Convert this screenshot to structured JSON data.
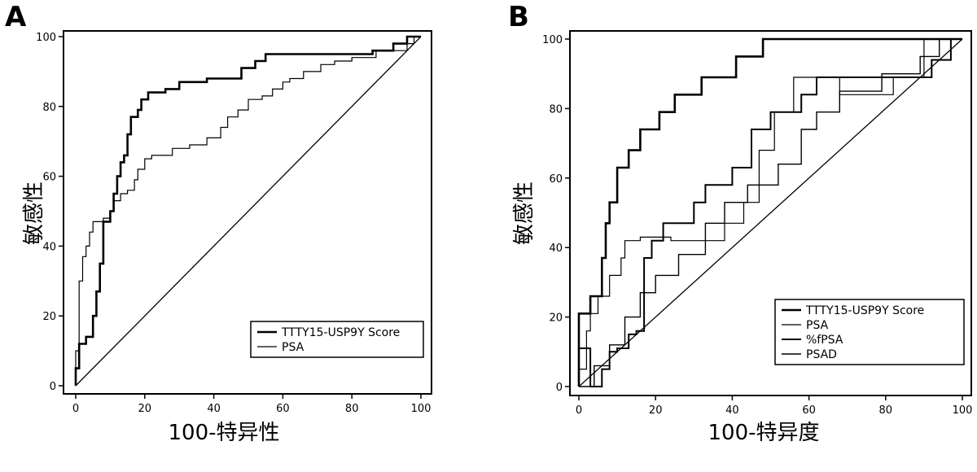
{
  "chart_data": [
    {
      "panel": "A",
      "type": "line",
      "xlabel": "100-特异性",
      "ylabel": "敏感性",
      "xlim": [
        0,
        100
      ],
      "ylim": [
        0,
        100
      ],
      "xticks": [
        0,
        20,
        40,
        60,
        80,
        100
      ],
      "yticks": [
        0,
        20,
        40,
        60,
        80,
        100
      ],
      "grid": false,
      "legend_position": "bottom-right",
      "reference_line": true,
      "series": [
        {
          "name": "TTTY15-USP9Y Score",
          "stroke_width": 2.6,
          "points": [
            [
              0,
              0
            ],
            [
              0,
              5
            ],
            [
              1,
              5
            ],
            [
              1,
              12
            ],
            [
              3,
              12
            ],
            [
              3,
              14
            ],
            [
              5,
              14
            ],
            [
              5,
              20
            ],
            [
              6,
              20
            ],
            [
              6,
              27
            ],
            [
              7,
              27
            ],
            [
              7,
              35
            ],
            [
              8,
              35
            ],
            [
              8,
              47
            ],
            [
              10,
              47
            ],
            [
              10,
              50
            ],
            [
              11,
              50
            ],
            [
              11,
              55
            ],
            [
              12,
              55
            ],
            [
              12,
              60
            ],
            [
              13,
              60
            ],
            [
              13,
              64
            ],
            [
              14,
              64
            ],
            [
              14,
              66
            ],
            [
              15,
              66
            ],
            [
              15,
              72
            ],
            [
              16,
              72
            ],
            [
              16,
              77
            ],
            [
              18,
              77
            ],
            [
              18,
              79
            ],
            [
              19,
              79
            ],
            [
              19,
              82
            ],
            [
              21,
              82
            ],
            [
              21,
              84
            ],
            [
              26,
              84
            ],
            [
              26,
              85
            ],
            [
              30,
              85
            ],
            [
              30,
              87
            ],
            [
              38,
              87
            ],
            [
              38,
              88
            ],
            [
              48,
              88
            ],
            [
              48,
              91
            ],
            [
              52,
              91
            ],
            [
              52,
              93
            ],
            [
              55,
              93
            ],
            [
              55,
              95
            ],
            [
              86,
              95
            ],
            [
              86,
              96
            ],
            [
              92,
              96
            ],
            [
              92,
              98
            ],
            [
              96,
              98
            ],
            [
              96,
              100
            ],
            [
              100,
              100
            ]
          ]
        },
        {
          "name": "PSA",
          "stroke_width": 1.2,
          "points": [
            [
              0,
              0
            ],
            [
              0,
              10
            ],
            [
              1,
              10
            ],
            [
              1,
              30
            ],
            [
              2,
              30
            ],
            [
              2,
              37
            ],
            [
              3,
              37
            ],
            [
              3,
              40
            ],
            [
              4,
              40
            ],
            [
              4,
              44
            ],
            [
              5,
              44
            ],
            [
              5,
              47
            ],
            [
              8,
              47
            ],
            [
              8,
              48
            ],
            [
              10,
              48
            ],
            [
              10,
              50
            ],
            [
              11,
              50
            ],
            [
              11,
              53
            ],
            [
              13,
              53
            ],
            [
              13,
              55
            ],
            [
              15,
              55
            ],
            [
              15,
              56
            ],
            [
              17,
              56
            ],
            [
              17,
              59
            ],
            [
              18,
              59
            ],
            [
              18,
              62
            ],
            [
              20,
              62
            ],
            [
              20,
              65
            ],
            [
              22,
              65
            ],
            [
              22,
              66
            ],
            [
              28,
              66
            ],
            [
              28,
              68
            ],
            [
              33,
              68
            ],
            [
              33,
              69
            ],
            [
              38,
              69
            ],
            [
              38,
              71
            ],
            [
              42,
              71
            ],
            [
              42,
              74
            ],
            [
              44,
              74
            ],
            [
              44,
              77
            ],
            [
              47,
              77
            ],
            [
              47,
              79
            ],
            [
              50,
              79
            ],
            [
              50,
              82
            ],
            [
              54,
              82
            ],
            [
              54,
              83
            ],
            [
              57,
              83
            ],
            [
              57,
              85
            ],
            [
              60,
              85
            ],
            [
              60,
              87
            ],
            [
              62,
              87
            ],
            [
              62,
              88
            ],
            [
              66,
              88
            ],
            [
              66,
              90
            ],
            [
              71,
              90
            ],
            [
              71,
              92
            ],
            [
              75,
              92
            ],
            [
              75,
              93
            ],
            [
              80,
              93
            ],
            [
              80,
              94
            ],
            [
              87,
              94
            ],
            [
              87,
              96
            ],
            [
              96,
              96
            ],
            [
              96,
              98
            ],
            [
              98,
              98
            ],
            [
              98,
              100
            ],
            [
              100,
              100
            ]
          ]
        }
      ]
    },
    {
      "panel": "B",
      "type": "line",
      "xlabel": "100-特异度",
      "ylabel": "敏感性",
      "xlim": [
        0,
        100
      ],
      "ylim": [
        0,
        100
      ],
      "xticks": [
        0,
        20,
        40,
        60,
        80,
        100
      ],
      "yticks": [
        0,
        20,
        40,
        60,
        80,
        100
      ],
      "grid": false,
      "legend_position": "bottom-right",
      "reference_line": true,
      "series": [
        {
          "name": "TTTY15-USP9Y Score",
          "stroke_width": 2.6,
          "points": [
            [
              0,
              0
            ],
            [
              0,
              21
            ],
            [
              3,
              21
            ],
            [
              3,
              26
            ],
            [
              6,
              26
            ],
            [
              6,
              37
            ],
            [
              7,
              37
            ],
            [
              7,
              47
            ],
            [
              8,
              47
            ],
            [
              8,
              53
            ],
            [
              10,
              53
            ],
            [
              10,
              63
            ],
            [
              13,
              63
            ],
            [
              13,
              68
            ],
            [
              16,
              68
            ],
            [
              16,
              74
            ],
            [
              21,
              74
            ],
            [
              21,
              79
            ],
            [
              25,
              79
            ],
            [
              25,
              84
            ],
            [
              32,
              84
            ],
            [
              32,
              89
            ],
            [
              41,
              89
            ],
            [
              41,
              95
            ],
            [
              48,
              95
            ],
            [
              48,
              100
            ],
            [
              100,
              100
            ]
          ]
        },
        {
          "name": "PSA",
          "stroke_width": 1.2,
          "points": [
            [
              0,
              0
            ],
            [
              0,
              5
            ],
            [
              2,
              5
            ],
            [
              2,
              16
            ],
            [
              3,
              16
            ],
            [
              3,
              21
            ],
            [
              5,
              21
            ],
            [
              5,
              26
            ],
            [
              8,
              26
            ],
            [
              8,
              32
            ],
            [
              11,
              32
            ],
            [
              11,
              37
            ],
            [
              12,
              37
            ],
            [
              12,
              42
            ],
            [
              16,
              42
            ],
            [
              16,
              43
            ],
            [
              24,
              43
            ],
            [
              24,
              42
            ],
            [
              38,
              42
            ],
            [
              38,
              47
            ],
            [
              43,
              47
            ],
            [
              43,
              53
            ],
            [
              47,
              53
            ],
            [
              47,
              68
            ],
            [
              51,
              68
            ],
            [
              51,
              79
            ],
            [
              56,
              79
            ],
            [
              56,
              89
            ],
            [
              68,
              89
            ],
            [
              68,
              84
            ],
            [
              82,
              84
            ],
            [
              82,
              89
            ],
            [
              90,
              89
            ],
            [
              90,
              100
            ],
            [
              100,
              100
            ]
          ]
        },
        {
          "name": "%fPSA",
          "stroke_width": 2.0,
          "points": [
            [
              0,
              0
            ],
            [
              0,
              11
            ],
            [
              3,
              11
            ],
            [
              3,
              0
            ],
            [
              6,
              0
            ],
            [
              6,
              5
            ],
            [
              8,
              5
            ],
            [
              8,
              10
            ],
            [
              10,
              10
            ],
            [
              10,
              11
            ],
            [
              13,
              11
            ],
            [
              13,
              15
            ],
            [
              15,
              15
            ],
            [
              15,
              16
            ],
            [
              17,
              16
            ],
            [
              17,
              37
            ],
            [
              19,
              37
            ],
            [
              19,
              42
            ],
            [
              22,
              42
            ],
            [
              22,
              47
            ],
            [
              30,
              47
            ],
            [
              30,
              53
            ],
            [
              33,
              53
            ],
            [
              33,
              58
            ],
            [
              40,
              58
            ],
            [
              40,
              63
            ],
            [
              45,
              63
            ],
            [
              45,
              74
            ],
            [
              50,
              74
            ],
            [
              50,
              79
            ],
            [
              58,
              79
            ],
            [
              58,
              84
            ],
            [
              62,
              84
            ],
            [
              62,
              89
            ],
            [
              92,
              89
            ],
            [
              92,
              94
            ],
            [
              97,
              94
            ],
            [
              97,
              100
            ],
            [
              100,
              100
            ]
          ]
        },
        {
          "name": "PSAD",
          "stroke_width": 1.4,
          "points": [
            [
              0,
              0
            ],
            [
              0,
              0
            ],
            [
              4,
              0
            ],
            [
              4,
              6
            ],
            [
              8,
              6
            ],
            [
              8,
              12
            ],
            [
              12,
              12
            ],
            [
              12,
              20
            ],
            [
              16,
              20
            ],
            [
              16,
              27
            ],
            [
              20,
              27
            ],
            [
              20,
              32
            ],
            [
              26,
              32
            ],
            [
              26,
              38
            ],
            [
              33,
              38
            ],
            [
              33,
              47
            ],
            [
              38,
              47
            ],
            [
              38,
              53
            ],
            [
              44,
              53
            ],
            [
              44,
              58
            ],
            [
              52,
              58
            ],
            [
              52,
              64
            ],
            [
              58,
              64
            ],
            [
              58,
              74
            ],
            [
              62,
              74
            ],
            [
              62,
              79
            ],
            [
              68,
              79
            ],
            [
              68,
              85
            ],
            [
              79,
              85
            ],
            [
              79,
              90
            ],
            [
              89,
              90
            ],
            [
              89,
              95
            ],
            [
              94,
              95
            ],
            [
              94,
              100
            ],
            [
              100,
              100
            ]
          ]
        }
      ]
    }
  ]
}
